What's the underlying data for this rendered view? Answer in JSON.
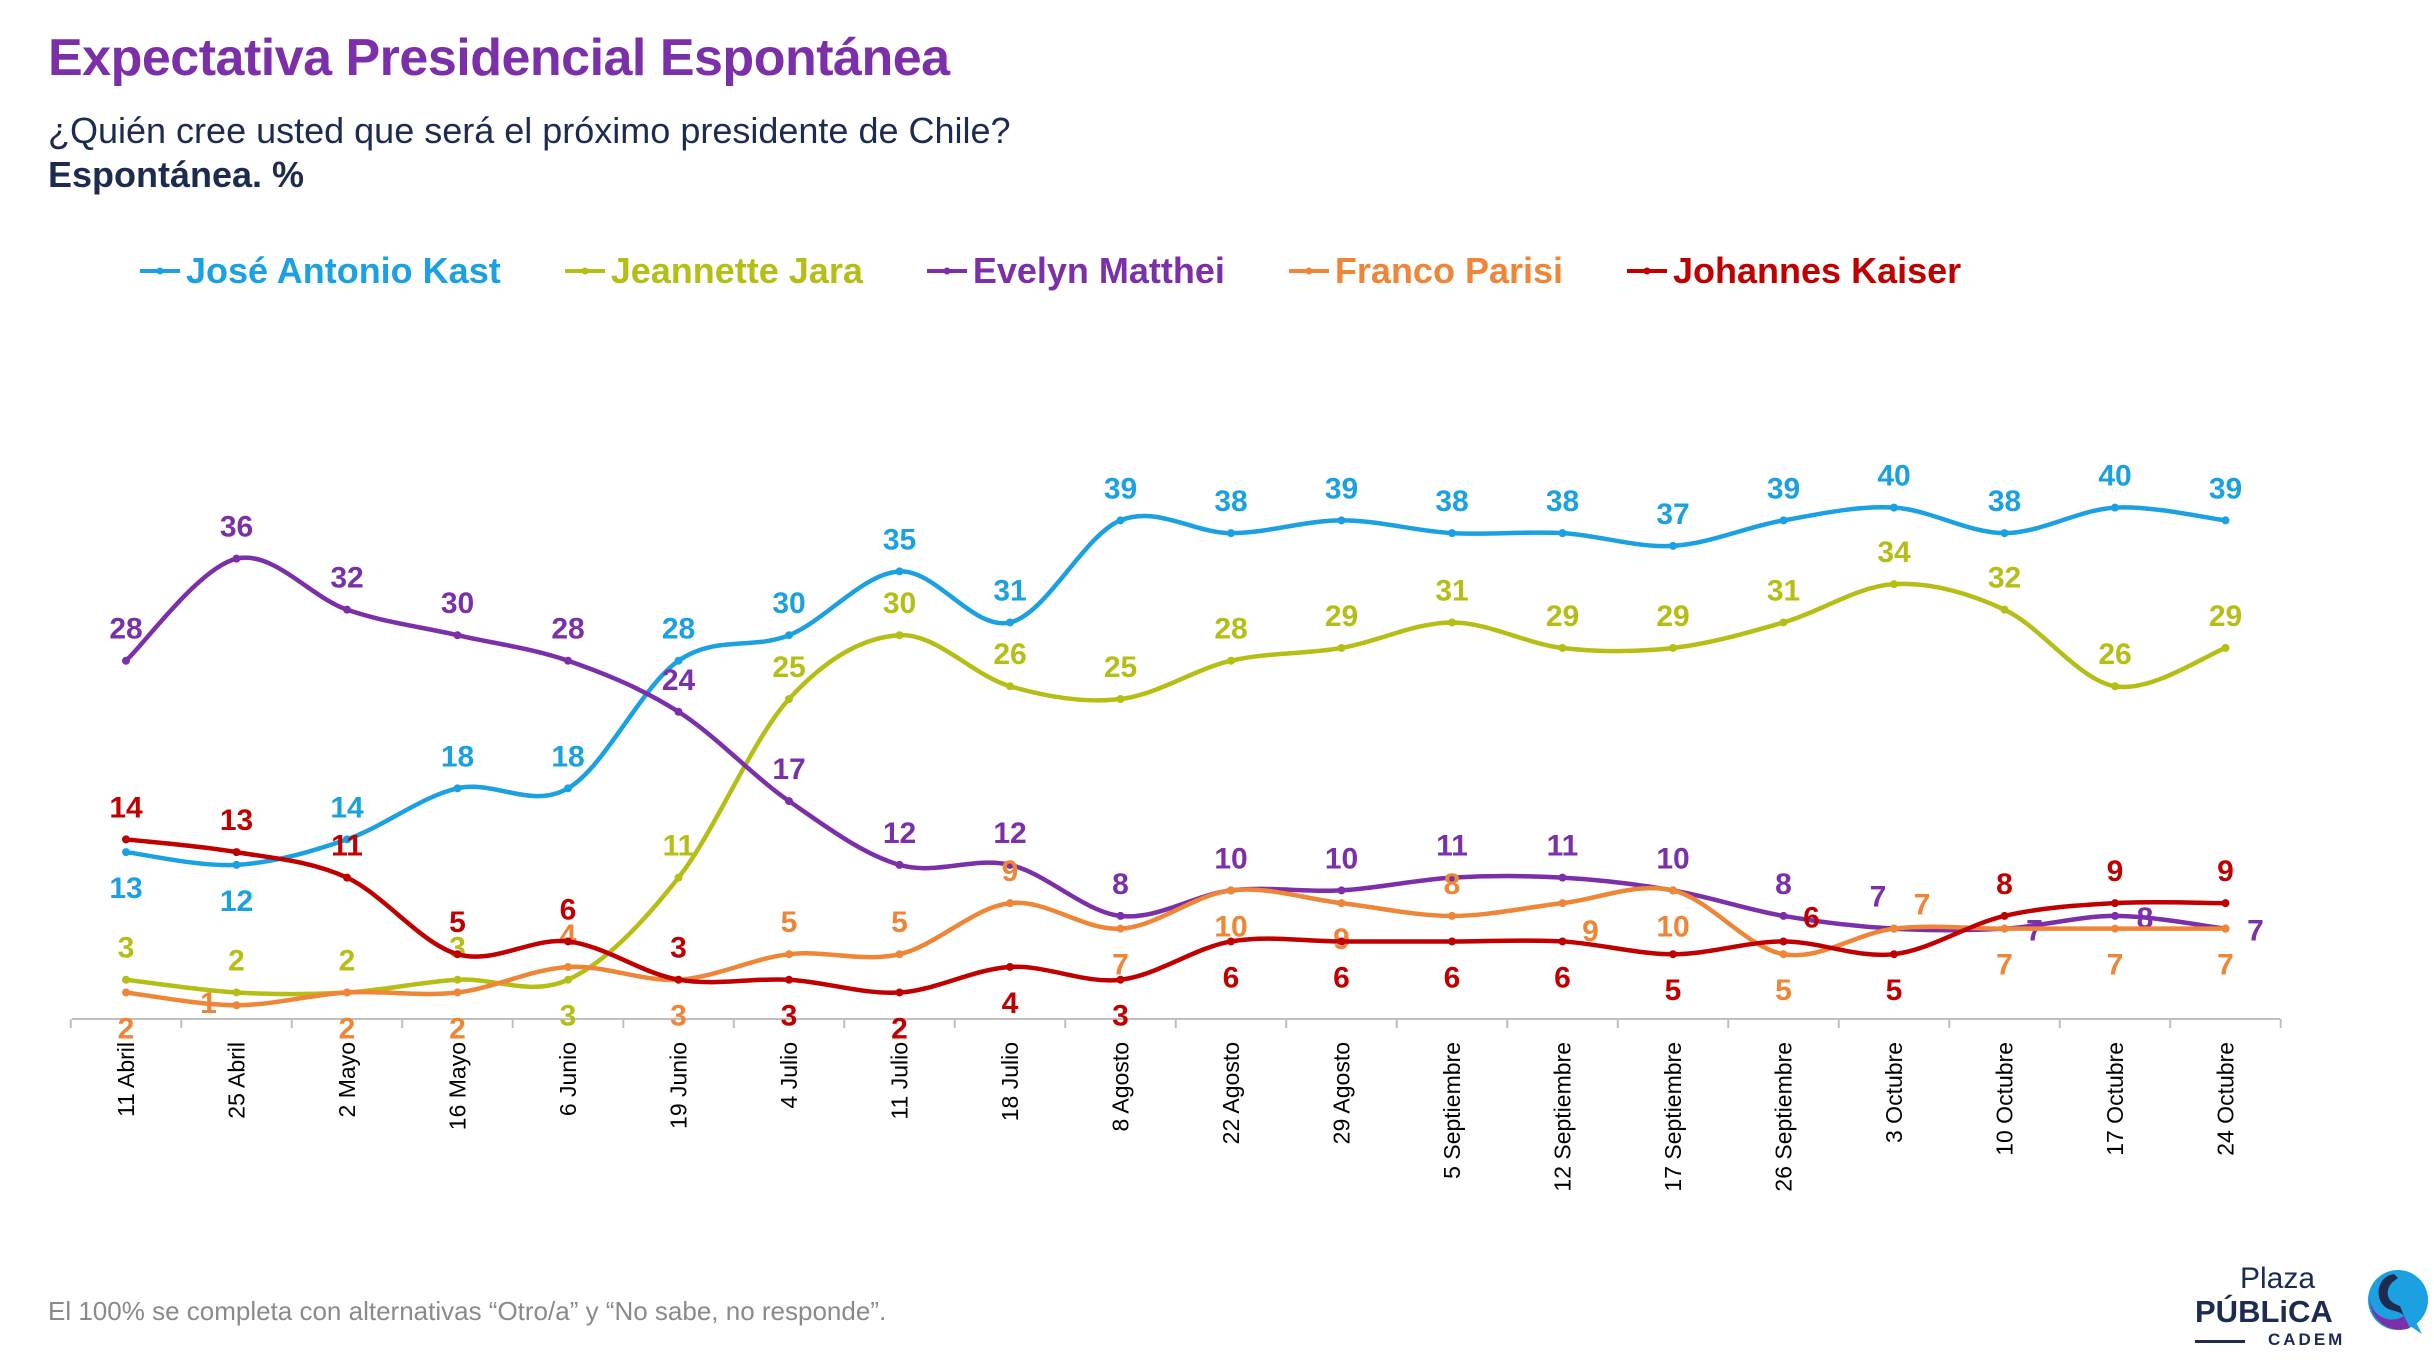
{
  "header": {
    "title": "Expectativa Presidencial Espontánea",
    "subtitle": "¿Quién cree usted que será el próximo presidente de Chile?",
    "subtitle2": "Espontánea. %"
  },
  "footnote": "El 100% se completa con alternativas “Otro/a” y “No sabe, no responde”.",
  "logo": {
    "line1": "Plaza",
    "line2": "PÚBLiCA",
    "line3": "CADEM"
  },
  "chart_data": {
    "type": "line",
    "title": "Expectativa Presidencial Espontánea",
    "xlabel": "",
    "ylabel": "%",
    "ylim": [
      0,
      45
    ],
    "grid": false,
    "legend": "top",
    "categories": [
      "11 Abril",
      "25 Abril",
      "2 Mayo",
      "16 Mayo",
      "6 Junio",
      "19 Junio",
      "4 Julio",
      "11 Julio",
      "18 Julio",
      "8 Agosto",
      "22 Agosto",
      "29 Agosto",
      "5 Septiembre",
      "12 Septiembre",
      "17 Septiembre",
      "26 Septiembre",
      "3 Octubre",
      "10 Octubre",
      "17 Octubre",
      "24 Octubre"
    ],
    "series": [
      {
        "name": "José Antonio Kast",
        "color": "#1BA1E2",
        "values": [
          13,
          12,
          14,
          18,
          18,
          28,
          30,
          35,
          31,
          39,
          38,
          39,
          38,
          38,
          37,
          39,
          40,
          38,
          40,
          39
        ]
      },
      {
        "name": "Jeannette Jara",
        "color": "#B5BE14",
        "values": [
          3,
          2,
          2,
          3,
          3,
          11,
          25,
          30,
          26,
          25,
          28,
          29,
          31,
          29,
          29,
          31,
          34,
          32,
          26,
          29
        ]
      },
      {
        "name": "Evelyn Matthei",
        "color": "#7B2FA8",
        "values": [
          28,
          36,
          32,
          30,
          28,
          24,
          17,
          12,
          12,
          8,
          10,
          10,
          11,
          11,
          10,
          8,
          7,
          7,
          8,
          7
        ]
      },
      {
        "name": "Franco Parisi",
        "color": "#EE8537",
        "values": [
          2,
          1,
          2,
          2,
          4,
          3,
          5,
          5,
          9,
          7,
          10,
          9,
          8,
          9,
          10,
          5,
          7,
          7,
          7,
          7
        ]
      },
      {
        "name": "Johannes Kaiser",
        "color": "#C00000",
        "values": [
          14,
          13,
          11,
          5,
          6,
          3,
          3,
          2,
          4,
          3,
          6,
          6,
          6,
          6,
          5,
          6,
          5,
          8,
          9,
          9
        ]
      }
    ]
  }
}
